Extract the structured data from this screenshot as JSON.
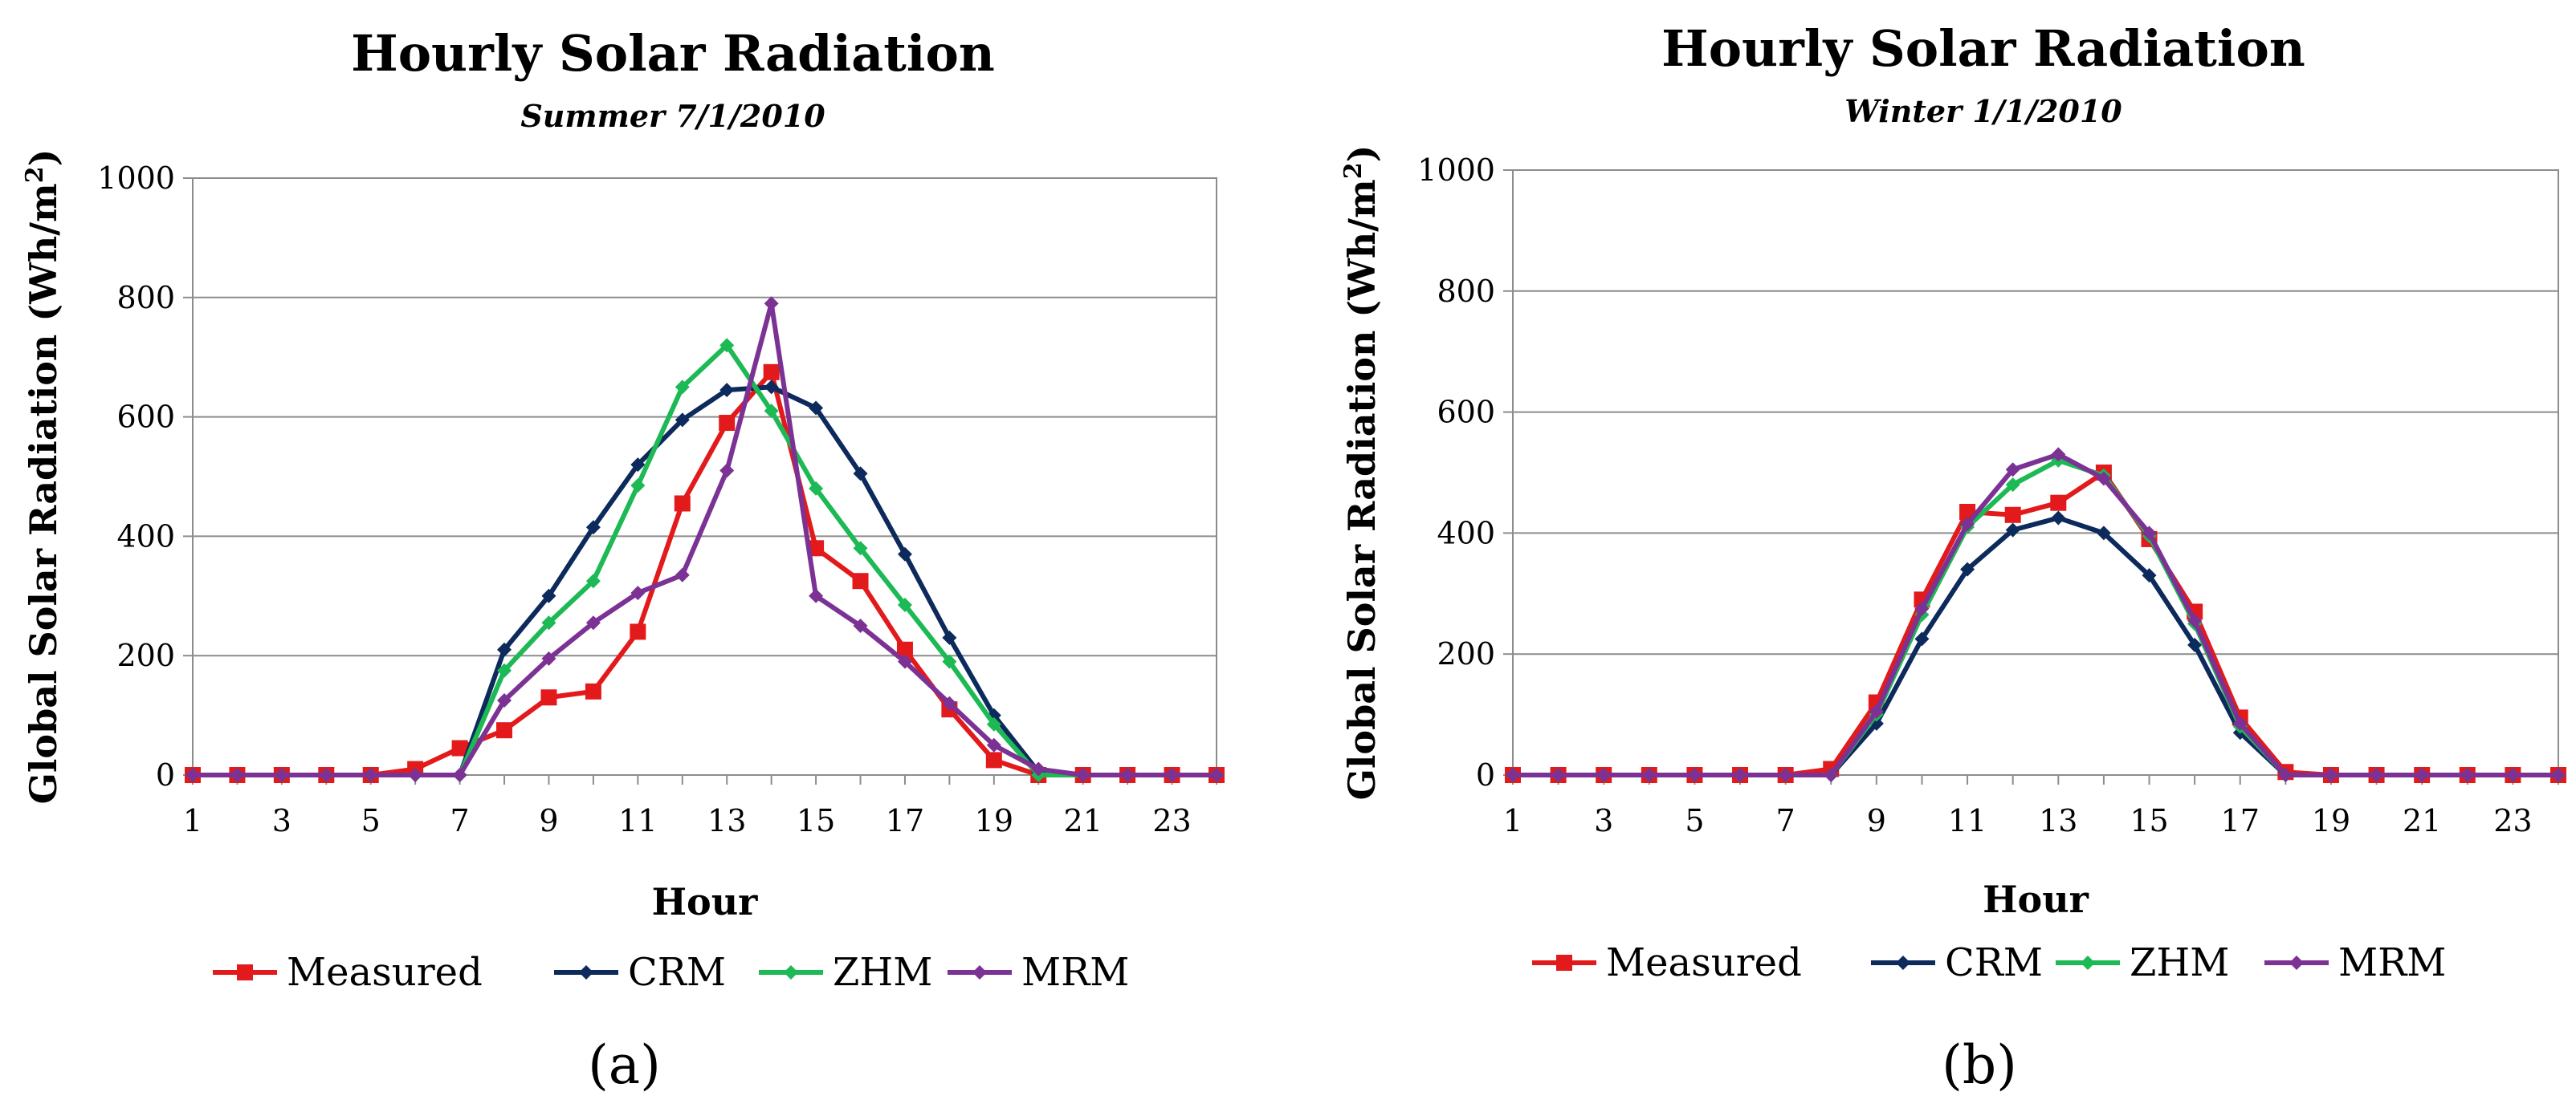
{
  "chart_data": [
    {
      "type": "line",
      "panel_label": "(a)",
      "title": "Hourly Solar Radiation",
      "subtitle": "Summer 7/1/2010",
      "xlabel": "Hour",
      "ylabel_main": "Global Solar Radiation (Wh/m",
      "ylabel_sup": "2",
      "ylabel_close": ")",
      "xlim": [
        1,
        24
      ],
      "ylim": [
        0,
        1000
      ],
      "yticks": [
        0,
        200,
        400,
        600,
        800,
        1000
      ],
      "xticks": [
        1,
        3,
        5,
        7,
        9,
        11,
        13,
        15,
        17,
        19,
        21,
        23
      ],
      "grid": "horizontal",
      "legend_position": "bottom",
      "x": [
        1,
        2,
        3,
        4,
        5,
        6,
        7,
        8,
        9,
        10,
        11,
        12,
        13,
        14,
        15,
        16,
        17,
        18,
        19,
        20,
        21,
        22,
        23,
        24
      ],
      "series": [
        {
          "name": "Measured",
          "color": "#e31a1c",
          "marker": "square",
          "values": [
            0,
            0,
            0,
            0,
            0,
            10,
            45,
            75,
            130,
            140,
            240,
            455,
            590,
            675,
            380,
            325,
            210,
            110,
            25,
            0,
            0,
            0,
            0,
            0
          ]
        },
        {
          "name": "CRM",
          "color": "#0d2a5c",
          "marker": "diamond",
          "values": [
            0,
            0,
            0,
            0,
            0,
            0,
            0,
            210,
            300,
            415,
            520,
            595,
            645,
            650,
            615,
            505,
            370,
            230,
            100,
            5,
            0,
            0,
            0,
            0
          ]
        },
        {
          "name": "ZHM",
          "color": "#1db954",
          "marker": "diamond",
          "values": [
            0,
            0,
            0,
            0,
            0,
            0,
            0,
            175,
            255,
            325,
            485,
            650,
            720,
            610,
            480,
            380,
            285,
            190,
            85,
            0,
            0,
            0,
            0,
            0
          ]
        },
        {
          "name": "MRM",
          "color": "#7b3294",
          "marker": "diamond",
          "values": [
            0,
            0,
            0,
            0,
            0,
            0,
            0,
            125,
            195,
            255,
            305,
            335,
            510,
            790,
            300,
            250,
            190,
            120,
            50,
            10,
            0,
            0,
            0,
            0
          ]
        }
      ]
    },
    {
      "type": "line",
      "panel_label": "(b)",
      "title": "Hourly Solar Radiation",
      "subtitle": "Winter 1/1/2010",
      "xlabel": "Hour",
      "ylabel_main": "Global Solar Radiation (Wh/m",
      "ylabel_sup": "2",
      "ylabel_close": ")",
      "xlim": [
        1,
        24
      ],
      "ylim": [
        0,
        1000
      ],
      "yticks": [
        0,
        200,
        400,
        600,
        800,
        1000
      ],
      "xticks": [
        1,
        3,
        5,
        7,
        9,
        11,
        13,
        15,
        17,
        19,
        21,
        23
      ],
      "grid": "horizontal",
      "legend_position": "bottom",
      "x": [
        1,
        2,
        3,
        4,
        5,
        6,
        7,
        8,
        9,
        10,
        11,
        12,
        13,
        14,
        15,
        16,
        17,
        18,
        19,
        20,
        21,
        22,
        23,
        24
      ],
      "series": [
        {
          "name": "Measured",
          "color": "#e31a1c",
          "marker": "square",
          "values": [
            0,
            0,
            0,
            0,
            0,
            0,
            0,
            10,
            120,
            290,
            435,
            430,
            450,
            500,
            390,
            270,
            95,
            5,
            0,
            0,
            0,
            0,
            0,
            0
          ]
        },
        {
          "name": "CRM",
          "color": "#0d2a5c",
          "marker": "diamond",
          "values": [
            0,
            0,
            0,
            0,
            0,
            0,
            0,
            0,
            85,
            225,
            340,
            405,
            425,
            400,
            330,
            215,
            70,
            0,
            0,
            0,
            0,
            0,
            0,
            0
          ]
        },
        {
          "name": "ZHM",
          "color": "#1db954",
          "marker": "diamond",
          "values": [
            0,
            0,
            0,
            0,
            0,
            0,
            0,
            0,
            100,
            265,
            410,
            480,
            520,
            495,
            395,
            250,
            80,
            0,
            0,
            0,
            0,
            0,
            0,
            0
          ]
        },
        {
          "name": "MRM",
          "color": "#7b3294",
          "marker": "diamond",
          "values": [
            0,
            0,
            0,
            0,
            0,
            0,
            0,
            0,
            105,
            275,
            415,
            505,
            530,
            490,
            400,
            255,
            85,
            0,
            0,
            0,
            0,
            0,
            0,
            0
          ]
        }
      ]
    }
  ]
}
